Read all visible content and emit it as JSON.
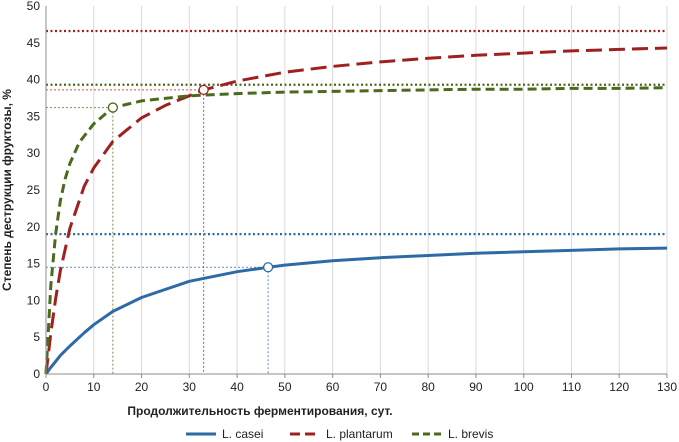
{
  "chart_data": {
    "type": "line",
    "title": "",
    "xlabel": "Продолжительность ферментирования, сут.",
    "ylabel": "Степень деструкции фруктозы, %",
    "xlim": [
      0,
      130
    ],
    "ylim": [
      0,
      50
    ],
    "xticks": [
      0,
      10,
      20,
      30,
      40,
      50,
      60,
      70,
      80,
      90,
      100,
      110,
      120,
      130
    ],
    "yticks": [
      0,
      5,
      10,
      15,
      20,
      25,
      30,
      35,
      40,
      45,
      50
    ],
    "grid": "vertical",
    "legend_position": "bottom",
    "series": [
      {
        "name": "L. casei",
        "color": "#2e6aa6",
        "dash": "solid",
        "x": [
          0,
          1,
          2,
          3,
          5,
          8,
          10,
          14,
          20,
          30,
          40,
          46.5,
          50,
          60,
          70,
          80,
          90,
          100,
          110,
          120,
          130
        ],
        "y": [
          0,
          0.9,
          1.7,
          2.5,
          3.8,
          5.6,
          6.7,
          8.5,
          10.4,
          12.6,
          13.9,
          14.5,
          14.8,
          15.4,
          15.8,
          16.1,
          16.4,
          16.6,
          16.8,
          17.0,
          17.1
        ],
        "asymptote": 19.0,
        "highlight_point": {
          "x": 46.5,
          "y": 14.5
        }
      },
      {
        "name": "L. plantarum",
        "color": "#a02020",
        "dash": "long-dash",
        "x": [
          0,
          1,
          2,
          3,
          5,
          8,
          10,
          14,
          20,
          25,
          30,
          33,
          40,
          50,
          60,
          70,
          80,
          90,
          100,
          110,
          120,
          130
        ],
        "y": [
          0,
          5.5,
          10.2,
          14.0,
          19.8,
          25.5,
          28.0,
          31.6,
          34.8,
          36.5,
          37.8,
          38.6,
          39.8,
          41.0,
          41.8,
          42.4,
          42.9,
          43.3,
          43.6,
          43.9,
          44.1,
          44.3
        ],
        "asymptote": 46.6,
        "highlight_point": {
          "x": 33,
          "y": 38.6
        }
      },
      {
        "name": "L. brevis",
        "color": "#4a6a1c",
        "dash": "medium-dash",
        "x": [
          0,
          1,
          2,
          3,
          4,
          5,
          7,
          10,
          14,
          20,
          30,
          40,
          50,
          60,
          70,
          80,
          90,
          100,
          110,
          120,
          130
        ],
        "y": [
          0,
          12.0,
          19.0,
          23.5,
          26.5,
          28.6,
          31.5,
          34.0,
          36.2,
          37.1,
          37.8,
          38.1,
          38.3,
          38.4,
          38.5,
          38.6,
          38.7,
          38.7,
          38.8,
          38.8,
          38.9
        ],
        "asymptote": 39.3,
        "highlight_point": {
          "x": 14,
          "y": 36.2
        }
      }
    ]
  },
  "legend": {
    "items": [
      {
        "label": "L. casei",
        "color": "#2e6aa6"
      },
      {
        "label": "L. plantarum",
        "color": "#a02020"
      },
      {
        "label": "L. brevis",
        "color": "#4a6a1c"
      }
    ]
  }
}
